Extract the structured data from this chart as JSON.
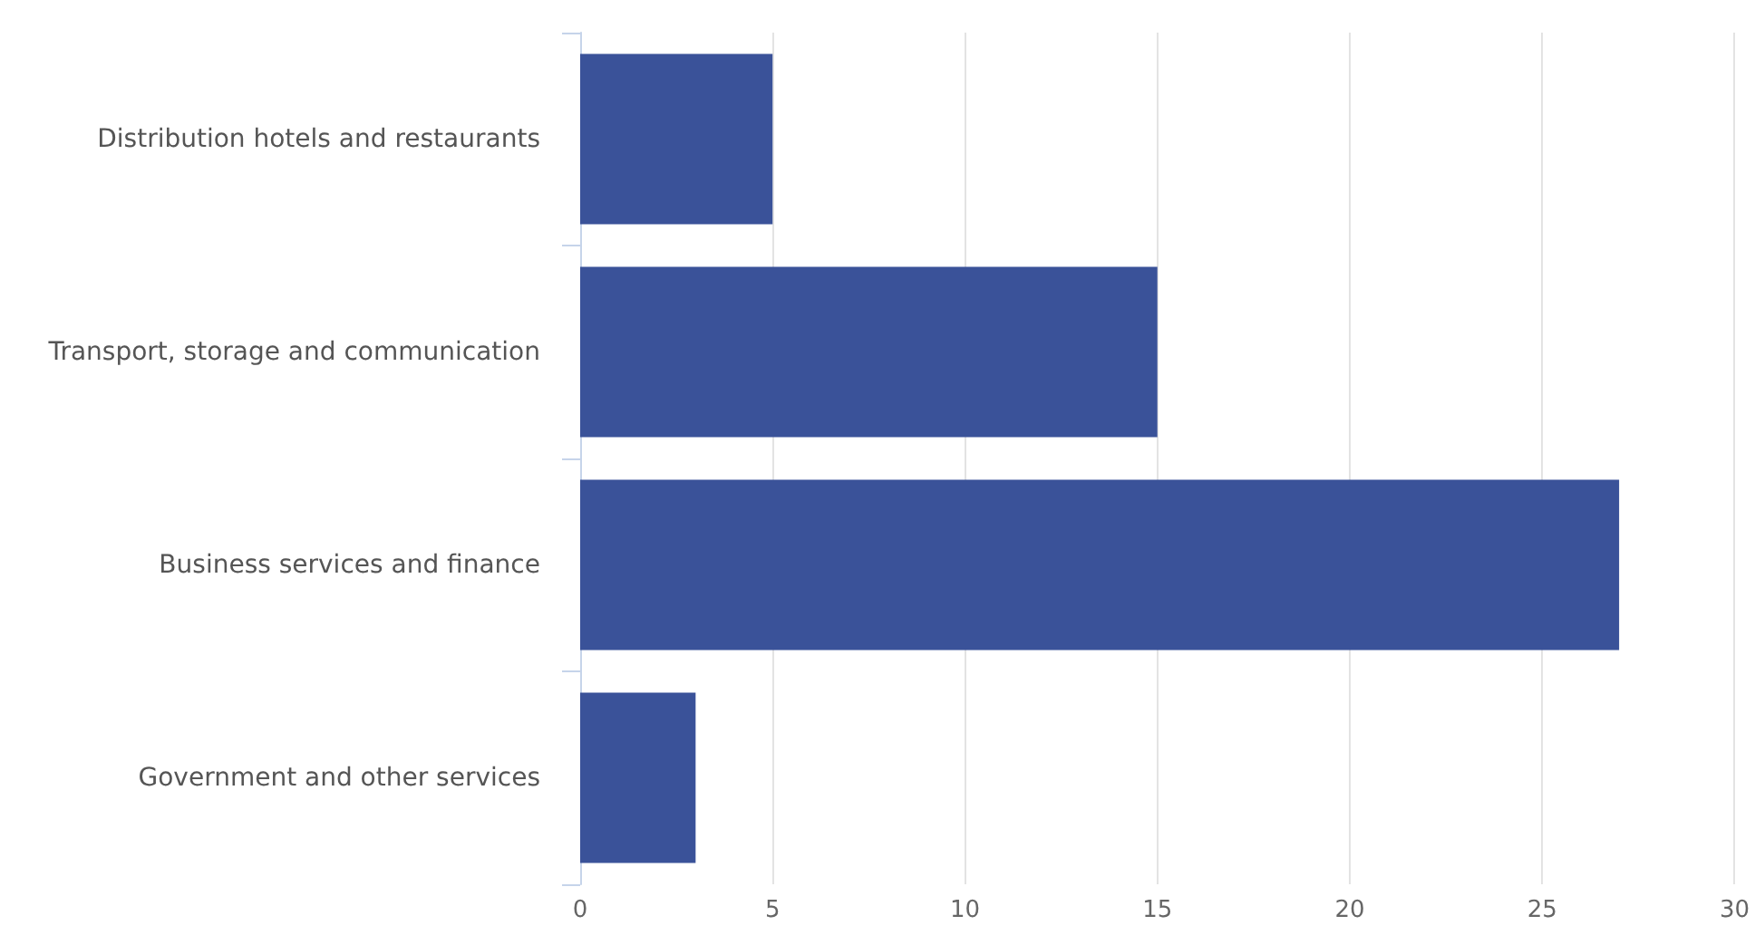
{
  "chart_data": {
    "type": "bar",
    "orientation": "horizontal",
    "categories": [
      "Distribution hotels and restaurants",
      "Transport, storage and communication",
      "Business services and finance",
      "Government and other services"
    ],
    "values": [
      5,
      15,
      27,
      3
    ],
    "color": "#3a5299",
    "xlim": [
      0,
      30
    ],
    "xticks": [
      0,
      5,
      10,
      15,
      20,
      25,
      30
    ],
    "grid": "x"
  }
}
